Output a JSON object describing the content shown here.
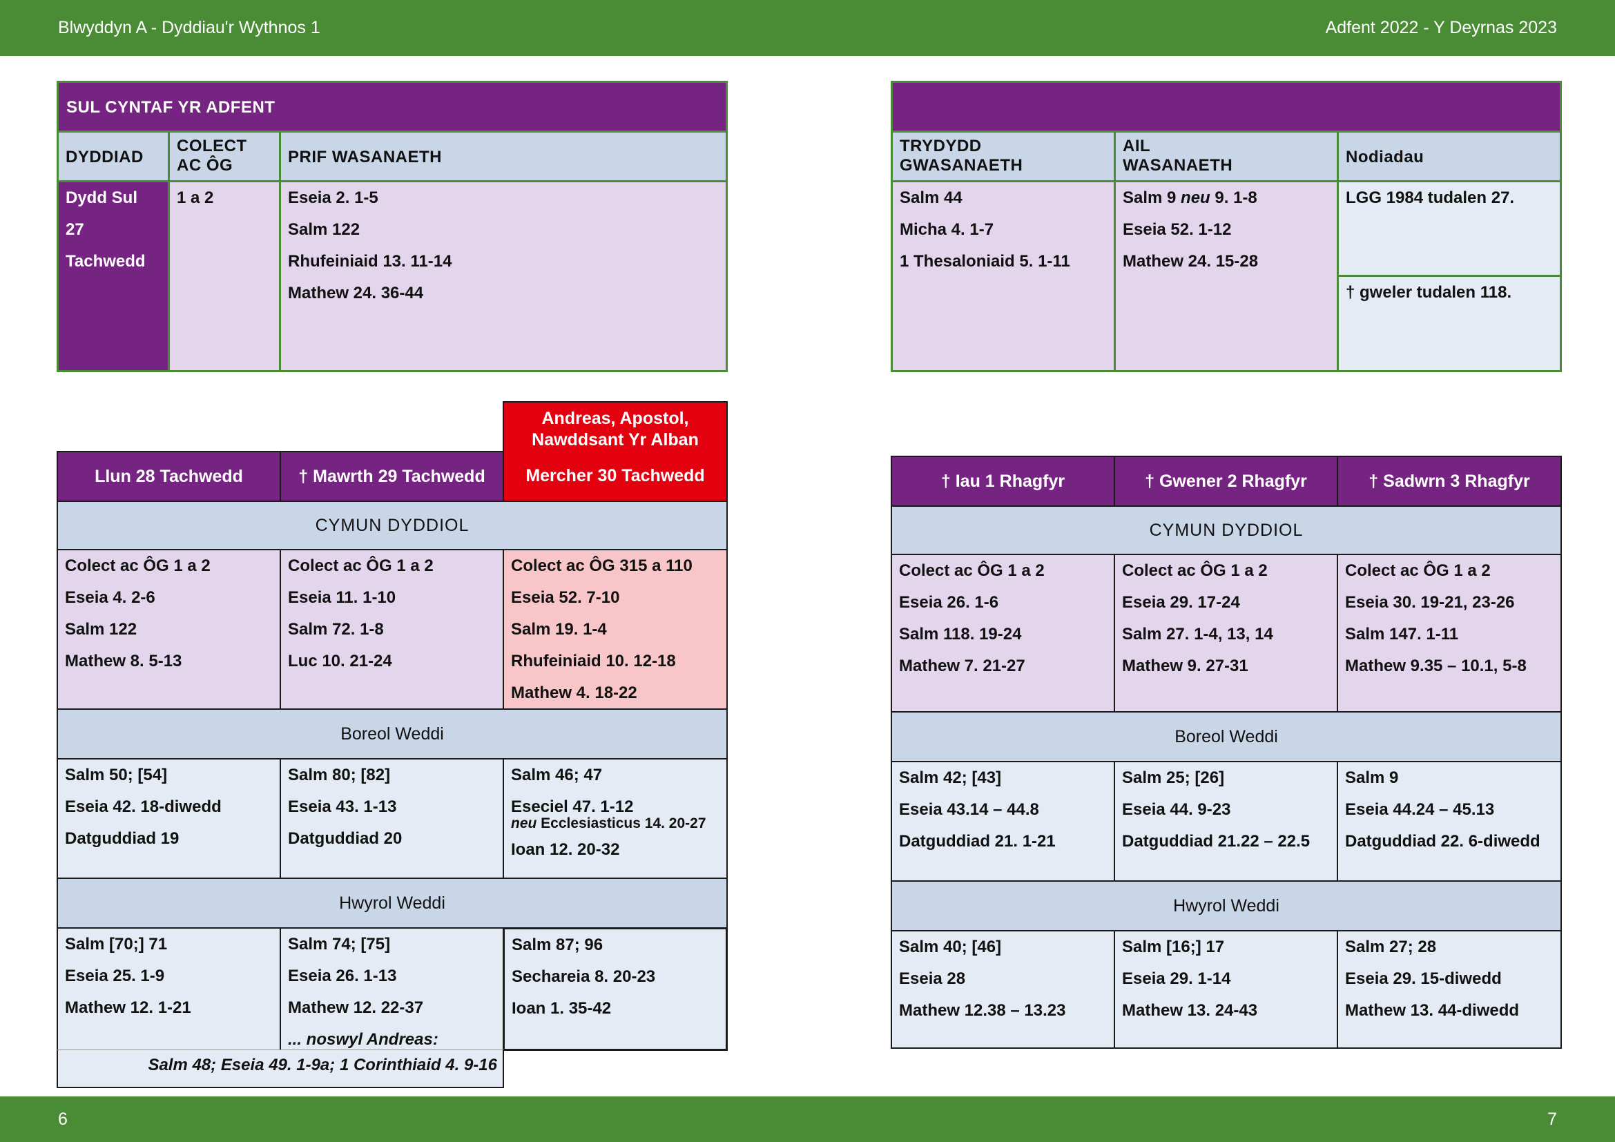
{
  "header": {
    "left": "Blwyddyn  A - Dyddiau'r Wythnos 1",
    "right": "Adfent  2022 - Y Deyrnas 2023"
  },
  "footer": {
    "left": "6",
    "right": "7"
  },
  "colors": {
    "purple": "#762481",
    "green": "#4a8c35",
    "red": "#e3000f",
    "lavender": "#e2d5ec",
    "light_blue": "#c9d6e8",
    "pale_blue": "#e5ebf4",
    "pink": "#f8c6c9"
  },
  "sunday": {
    "title": "SUL CYNTAF YR ADFENT",
    "headers": {
      "date": "DYDDIAD",
      "collect": [
        "COLECT",
        "AC ÔG"
      ],
      "main": "PRIF WASANAETH",
      "third": [
        "TRYDYDD",
        "GWASANAETH"
      ],
      "second": [
        "AIL",
        "WASANAETH"
      ],
      "notes": "Nodiadau"
    },
    "date": [
      "Dydd Sul",
      "27",
      "Tachwedd"
    ],
    "collect": "1 a 2",
    "main": [
      "Eseia 2. 1-5",
      "Salm 122",
      "Rhufeiniaid 13. 11-14",
      "Mathew 24. 36-44"
    ],
    "third": [
      "Salm 44",
      "Micha 4. 1-7",
      "1 Thesaloniaid 5. 1-11"
    ],
    "second": {
      "line1_a": "Salm 9 ",
      "line1_neu": "neu",
      "line1_b": "  9. 1-8",
      "lines": [
        "Eseia 52. 1-12",
        "Mathew 24. 15-28"
      ]
    },
    "notes": [
      "LGG 1984 tudalen 27.",
      "†  gweler tudalen 118."
    ]
  },
  "week_left": {
    "feast_header": [
      "Andreas, Apostol,",
      "Nawddsant Yr Alban"
    ],
    "days": [
      "Llun 28 Tachwedd",
      "† Mawrth 29 Tachwedd",
      "Mercher 30 Tachwedd"
    ],
    "sections": {
      "cymun": "CYMUN DYDDIOL",
      "boreol": "Boreol Weddi",
      "hwyrol": "Hwyrol Weddi"
    },
    "cymun": [
      [
        "Colect ac ÔG 1 a 2",
        "Eseia 4. 2-6",
        "Salm 122",
        "Mathew 8. 5-13"
      ],
      [
        "Colect ac ÔG 1 a 2",
        "Eseia 11. 1-10",
        "Salm 72. 1-8",
        "Luc 10. 21-24"
      ],
      [
        "Colect ac ÔG 315 a 110",
        "Eseia 52. 7-10",
        "Salm 19. 1-4",
        "Rhufeiniaid 10. 12-18",
        "Mathew 4. 18-22"
      ]
    ],
    "boreol": [
      [
        "Salm 50; [54]",
        "Eseia 42. 18-diwedd",
        "Datguddiad 19"
      ],
      [
        "Salm 80; [82]",
        "Eseia 43. 1-13",
        "Datguddiad 20"
      ],
      {
        "l1": "Salm 46; 47",
        "l2": "Eseciel 47. 1-12",
        "neu": "neu",
        "l3": " Ecclesiasticus 14. 20-27",
        "l4": "Ioan 12. 20-32"
      }
    ],
    "hwyrol": [
      [
        "Salm [70;] 71",
        "Eseia 25. 1-9",
        "Mathew 12. 1-21"
      ],
      [
        "Salm 74; [75]",
        "Eseia 26. 1-13",
        "Mathew 12. 22-37",
        "... noswyl Andreas:"
      ],
      [
        "Salm 87; 96",
        "Sechareia 8. 20-23",
        "Ioan 1. 35-42"
      ]
    ],
    "eve_readings": "Salm 48;  Eseia 49. 1-9a;  1 Corinthiaid 4. 9-16"
  },
  "week_right": {
    "days": [
      "† Iau 1 Rhagfyr",
      "† Gwener 2 Rhagfyr",
      "† Sadwrn 3 Rhagfyr"
    ],
    "sections": {
      "cymun": "CYMUN DYDDIOL",
      "boreol": "Boreol Weddi",
      "hwyrol": "Hwyrol Weddi"
    },
    "cymun": [
      [
        "Colect ac ÔG 1 a 2",
        "Eseia 26. 1-6",
        "Salm 118. 19-24",
        "Mathew 7. 21-27"
      ],
      [
        "Colect ac ÔG 1 a 2",
        "Eseia 29. 17-24",
        "Salm 27. 1-4, 13, 14",
        "Mathew 9. 27-31"
      ],
      [
        "Colect ac ÔG 1 a 2",
        "Eseia 30. 19-21, 23-26",
        "Salm 147. 1-11",
        "Mathew 9.35 – 10.1, 5-8"
      ]
    ],
    "boreol": [
      [
        "Salm 42; [43]",
        "Eseia 43.14 – 44.8",
        "Datguddiad 21. 1-21"
      ],
      [
        "Salm 25; [26]",
        "Eseia 44. 9-23",
        "Datguddiad 21.22 – 22.5"
      ],
      [
        "Salm 9",
        "Eseia 44.24 – 45.13",
        "Datguddiad 22. 6-diwedd"
      ]
    ],
    "hwyrol": [
      [
        "Salm 40; [46]",
        "Eseia 28",
        "Mathew 12.38 – 13.23"
      ],
      [
        "Salm [16;] 17",
        "Eseia 29. 1-14",
        "Mathew 13. 24-43"
      ],
      [
        "Salm 27; 28",
        "Eseia 29. 15-diwedd",
        "Mathew 13. 44-diwedd"
      ]
    ]
  }
}
